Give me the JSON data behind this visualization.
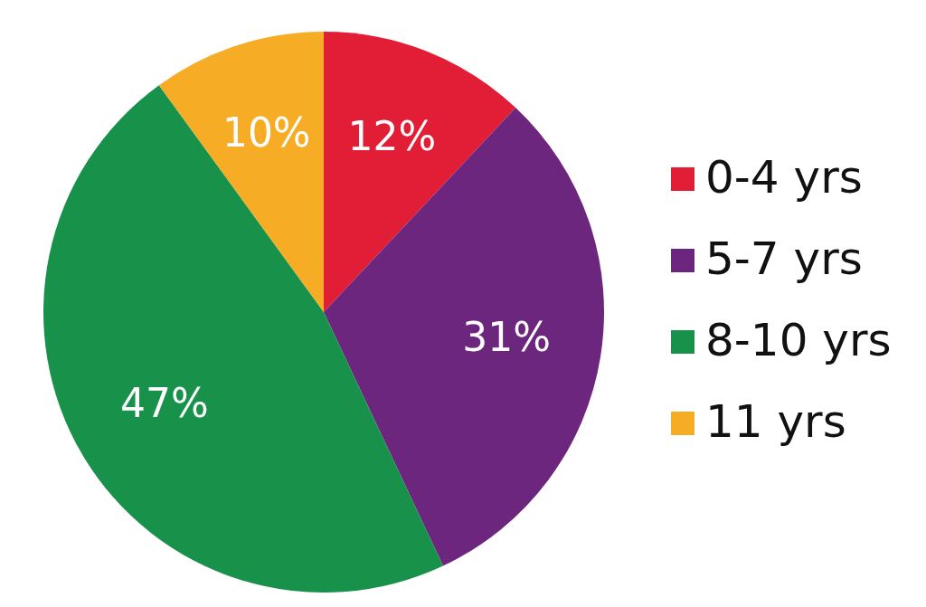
{
  "chart_data": {
    "type": "pie",
    "categories": [
      "0-4 yrs",
      "5-7 yrs",
      "8-10 yrs",
      "11 yrs"
    ],
    "values": [
      12,
      31,
      47,
      10
    ],
    "colors": [
      "#e21e37",
      "#6d267e",
      "#18914a",
      "#f6ac24"
    ],
    "value_labels": [
      "12%",
      "31%",
      "47%",
      "10%"
    ],
    "legend": "right"
  }
}
